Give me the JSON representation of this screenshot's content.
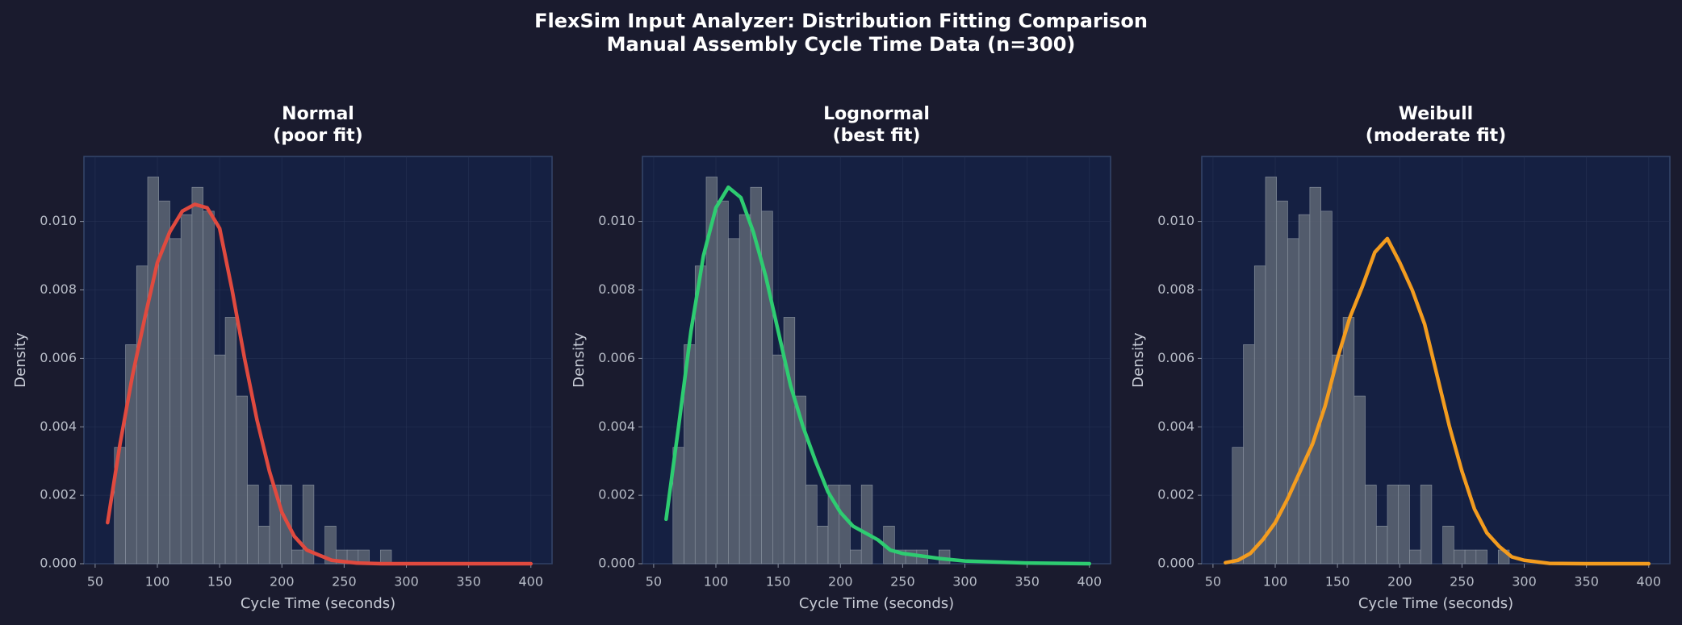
{
  "title": "FlexSim Input Analyzer: Distribution Fitting Comparison",
  "subtitle": "Manual Assembly Cycle Time Data (n=300)",
  "chart_data": [
    {
      "type": "histogram",
      "title": "Normal",
      "subtitle": "(poor fit)",
      "x_label": "Cycle Time (seconds)",
      "y_label": "Density",
      "bins": [
        65.5,
        74.4,
        83.3,
        92.2,
        101.1,
        110,
        118.9,
        127.8,
        136.7,
        145.6,
        154.5,
        163.4,
        172.3,
        181.2,
        190.1,
        199,
        207.9,
        216.8,
        225.7,
        234.6,
        243.5,
        252.4,
        261.3,
        270.2,
        279.1,
        288
      ],
      "counts": [
        0.0034,
        0.0064,
        0.0087,
        0.0113,
        0.0106,
        0.0095,
        0.0102,
        0.011,
        0.0103,
        0.0061,
        0.0072,
        0.0049,
        0.0023,
        0.0011,
        0.0023,
        0.0023,
        0.0004,
        0.0023,
        0,
        0.0011,
        0.0004,
        0.0004,
        0.0004,
        0,
        0.0004
      ],
      "bar_color": "#5d6673",
      "curve": {
        "color": "#e04a3f",
        "x": [
          60,
          70,
          80,
          90,
          100,
          110,
          120,
          130,
          140,
          150,
          160,
          170,
          180,
          190,
          200,
          210,
          220,
          240,
          260,
          280,
          300,
          350,
          400
        ],
        "values": [
          0.0012,
          0.0035,
          0.0055,
          0.0072,
          0.0088,
          0.0097,
          0.0103,
          0.0105,
          0.0104,
          0.0098,
          0.008,
          0.006,
          0.0042,
          0.0027,
          0.0015,
          0.0008,
          0.0004,
          0.0001,
          2e-05,
          0,
          0,
          0,
          0
        ]
      },
      "xlim": [
        41,
        417
      ],
      "xticks": [
        50,
        100,
        150,
        200,
        250,
        300,
        350,
        400
      ],
      "ylim": [
        0,
        0.0119
      ],
      "yticks": [
        {
          "value": 0,
          "label": "0.000"
        },
        {
          "value": 0.002,
          "label": "0.002"
        },
        {
          "value": 0.004,
          "label": "0.004"
        },
        {
          "value": 0.006,
          "label": "0.006"
        },
        {
          "value": 0.008,
          "label": "0.008"
        },
        {
          "value": 0.01,
          "label": "0.010"
        }
      ],
      "grid": true
    },
    {
      "type": "histogram",
      "title": "Lognormal",
      "subtitle": "(best fit)",
      "x_label": "Cycle Time (seconds)",
      "y_label": "Density",
      "bins": [
        65.5,
        74.4,
        83.3,
        92.2,
        101.1,
        110,
        118.9,
        127.8,
        136.7,
        145.6,
        154.5,
        163.4,
        172.3,
        181.2,
        190.1,
        199,
        207.9,
        216.8,
        225.7,
        234.6,
        243.5,
        252.4,
        261.3,
        270.2,
        279.1,
        288
      ],
      "counts": [
        0.0034,
        0.0064,
        0.0087,
        0.0113,
        0.0106,
        0.0095,
        0.0102,
        0.011,
        0.0103,
        0.0061,
        0.0072,
        0.0049,
        0.0023,
        0.0011,
        0.0023,
        0.0023,
        0.0004,
        0.0023,
        0,
        0.0011,
        0.0004,
        0.0004,
        0.0004,
        0,
        0.0004
      ],
      "bar_color": "#5d6673",
      "curve": {
        "color": "#2ecc71",
        "x": [
          60,
          70,
          80,
          90,
          100,
          110,
          120,
          130,
          140,
          150,
          160,
          170,
          180,
          190,
          200,
          210,
          220,
          230,
          240,
          250,
          260,
          280,
          300,
          350,
          400
        ],
        "values": [
          0.0013,
          0.004,
          0.0068,
          0.009,
          0.0104,
          0.011,
          0.0107,
          0.0097,
          0.0084,
          0.0068,
          0.0052,
          0.004,
          0.003,
          0.0021,
          0.0015,
          0.0011,
          0.0009,
          0.0007,
          0.0004,
          0.0003,
          0.00025,
          0.00015,
          8e-05,
          2e-05,
          0
        ]
      },
      "xlim": [
        41,
        417
      ],
      "xticks": [
        50,
        100,
        150,
        200,
        250,
        300,
        350,
        400
      ],
      "ylim": [
        0,
        0.0119
      ],
      "yticks": [
        {
          "value": 0,
          "label": "0.000"
        },
        {
          "value": 0.002,
          "label": "0.002"
        },
        {
          "value": 0.004,
          "label": "0.004"
        },
        {
          "value": 0.006,
          "label": "0.006"
        },
        {
          "value": 0.008,
          "label": "0.008"
        },
        {
          "value": 0.01,
          "label": "0.010"
        }
      ],
      "grid": true
    },
    {
      "type": "histogram",
      "title": "Weibull",
      "subtitle": "(moderate fit)",
      "x_label": "Cycle Time (seconds)",
      "y_label": "Density",
      "bins": [
        65.5,
        74.4,
        83.3,
        92.2,
        101.1,
        110,
        118.9,
        127.8,
        136.7,
        145.6,
        154.5,
        163.4,
        172.3,
        181.2,
        190.1,
        199,
        207.9,
        216.8,
        225.7,
        234.6,
        243.5,
        252.4,
        261.3,
        270.2,
        279.1,
        288
      ],
      "counts": [
        0.0034,
        0.0064,
        0.0087,
        0.0113,
        0.0106,
        0.0095,
        0.0102,
        0.011,
        0.0103,
        0.0061,
        0.0072,
        0.0049,
        0.0023,
        0.0011,
        0.0023,
        0.0023,
        0.0004,
        0.0023,
        0,
        0.0011,
        0.0004,
        0.0004,
        0.0004,
        0,
        0.0004
      ],
      "bar_color": "#5d6673",
      "curve": {
        "color": "#f39c1f",
        "x": [
          60,
          70,
          80,
          90,
          100,
          110,
          120,
          130,
          140,
          150,
          160,
          170,
          180,
          190,
          200,
          210,
          220,
          230,
          240,
          250,
          260,
          270,
          280,
          290,
          300,
          320,
          350,
          400
        ],
        "values": [
          3e-05,
          0.0001,
          0.0003,
          0.0007,
          0.0012,
          0.0019,
          0.0027,
          0.0035,
          0.0046,
          0.006,
          0.0072,
          0.0081,
          0.0091,
          0.0095,
          0.0088,
          0.008,
          0.007,
          0.0055,
          0.004,
          0.0027,
          0.0016,
          0.0009,
          0.0005,
          0.0002,
          0.0001,
          1e-05,
          0,
          0
        ]
      },
      "xlim": [
        41,
        417
      ],
      "xticks": [
        50,
        100,
        150,
        200,
        250,
        300,
        350,
        400
      ],
      "ylim": [
        0,
        0.0119
      ],
      "yticks": [
        {
          "value": 0,
          "label": "0.000"
        },
        {
          "value": 0.002,
          "label": "0.002"
        },
        {
          "value": 0.004,
          "label": "0.004"
        },
        {
          "value": 0.006,
          "label": "0.006"
        },
        {
          "value": 0.008,
          "label": "0.008"
        },
        {
          "value": 0.01,
          "label": "0.010"
        }
      ],
      "grid": true
    }
  ]
}
